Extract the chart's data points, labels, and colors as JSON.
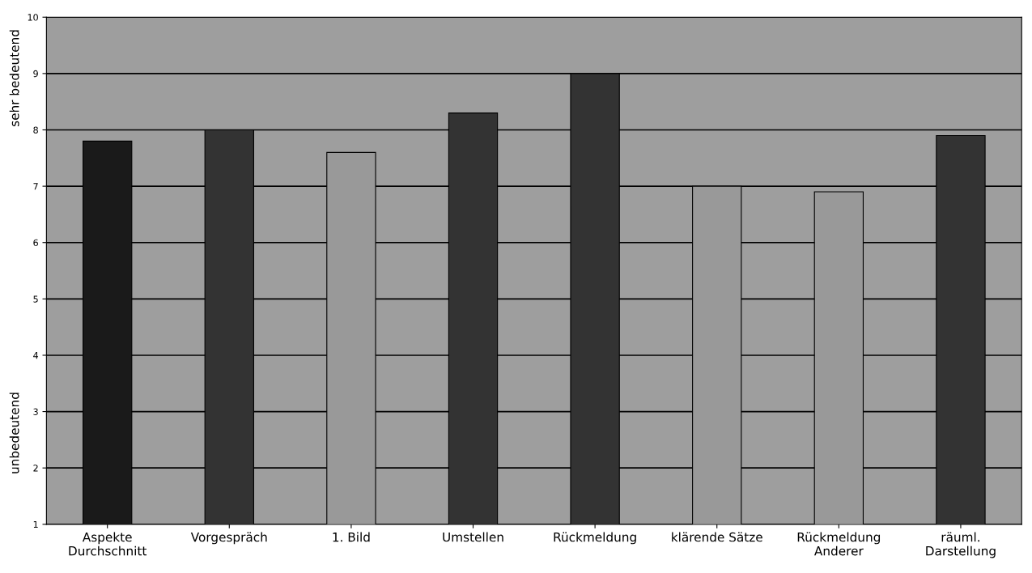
{
  "chart_data": {
    "type": "bar",
    "categories": [
      "Aspekte\nDurchschnitt",
      "Vorgespräch",
      "1. Bild",
      "Umstellen",
      "Rückmeldung",
      "klärende Sätze",
      "Rückmeldung\nAnderer",
      "räuml.\nDarstellung"
    ],
    "values": [
      7.8,
      8.0,
      7.6,
      8.3,
      9.0,
      7.0,
      6.9,
      7.9
    ],
    "colors": [
      "#1a1a1a",
      "#333333",
      "#999999",
      "#333333",
      "#333333",
      "#999999",
      "#999999",
      "#333333"
    ],
    "ylim": [
      1,
      10
    ],
    "yticks": [
      1,
      2,
      3,
      4,
      5,
      6,
      7,
      8,
      9,
      10
    ],
    "grid": "y",
    "annotations": [
      "sehr bedeutend",
      "unbedeutend"
    ]
  }
}
